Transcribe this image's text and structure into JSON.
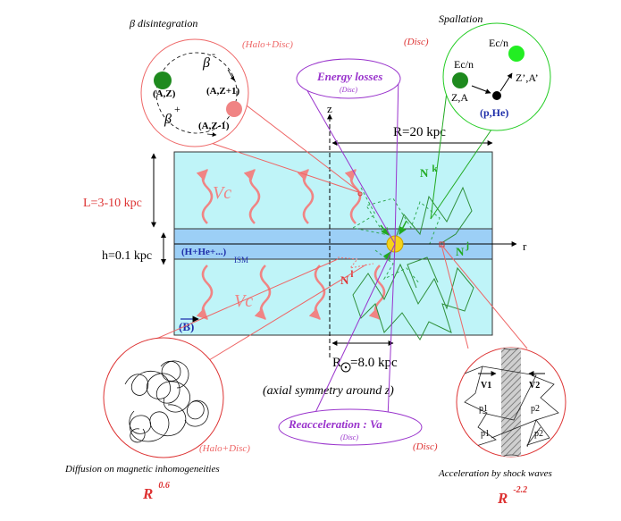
{
  "titles": {
    "beta": "β disintegration",
    "spallation": "Spallation",
    "diffusion": "Diffusion on magnetic inhomogeneities",
    "acceleration": "Acceleration by shock waves"
  },
  "region_labels": {
    "halo_disc_top": "(Halo+Disc)",
    "disc_top": "(Disc)",
    "halo_disc_bottom": "(Halo+Disc)",
    "disc_bottom": "(Disc)"
  },
  "energy_losses": {
    "title": "Energy losses",
    "sub": "(Disc)"
  },
  "reacceleration": {
    "title": "Reacceleration : Va",
    "sub": "(Disc)"
  },
  "beta_circle": {
    "beta_minus": "β",
    "minus_sign": "-",
    "beta_plus": "β",
    "plus_sign": "+",
    "az": "(A,Z)",
    "az_plus": "(A,Z+1)",
    "az_minus": "(A,Z-1)"
  },
  "spall_circle": {
    "ecn_top": "Ec/n",
    "ecn_left": "Ec/n",
    "za": "Z,A",
    "zprime": "Z’,A’",
    "phe": "(p,He)"
  },
  "galaxy": {
    "axis_z": "z",
    "axis_r": "r",
    "radius": "R=20 kpc",
    "halo_height": "L=3-10 kpc",
    "disc_height": "h=0.1 kpc",
    "ism_label": "(H+He+...)",
    "ism_sub": "ISM",
    "vc_top": "Vc",
    "vc_bottom": "Vc",
    "b_field": "B",
    "sun_pos_r": "R",
    "sun_pos_val": "=8.0 kpc",
    "symmetry": "(axial symmetry around z)",
    "n_k": "N",
    "k": "k",
    "n_l": "N",
    "l": "l",
    "n_j": "N",
    "j": "j"
  },
  "shock_circle": {
    "v1": "V1",
    "v2": "V2",
    "p1a": "p1",
    "p2a": "p2",
    "p1b": "p1",
    "p2b": "p2"
  },
  "exponents": {
    "left_r": "R",
    "left_exp": "0.6",
    "right_r": "R",
    "right_exp": "-2.2"
  },
  "colors": {
    "halo": "#bff4f8",
    "disc": "#9ccff6",
    "wave": "#f08484",
    "red": "#dd3333",
    "green": "#22aa22",
    "purple": "#9933cc",
    "blue": "#1f2faa",
    "sun": "#f5d21a"
  }
}
